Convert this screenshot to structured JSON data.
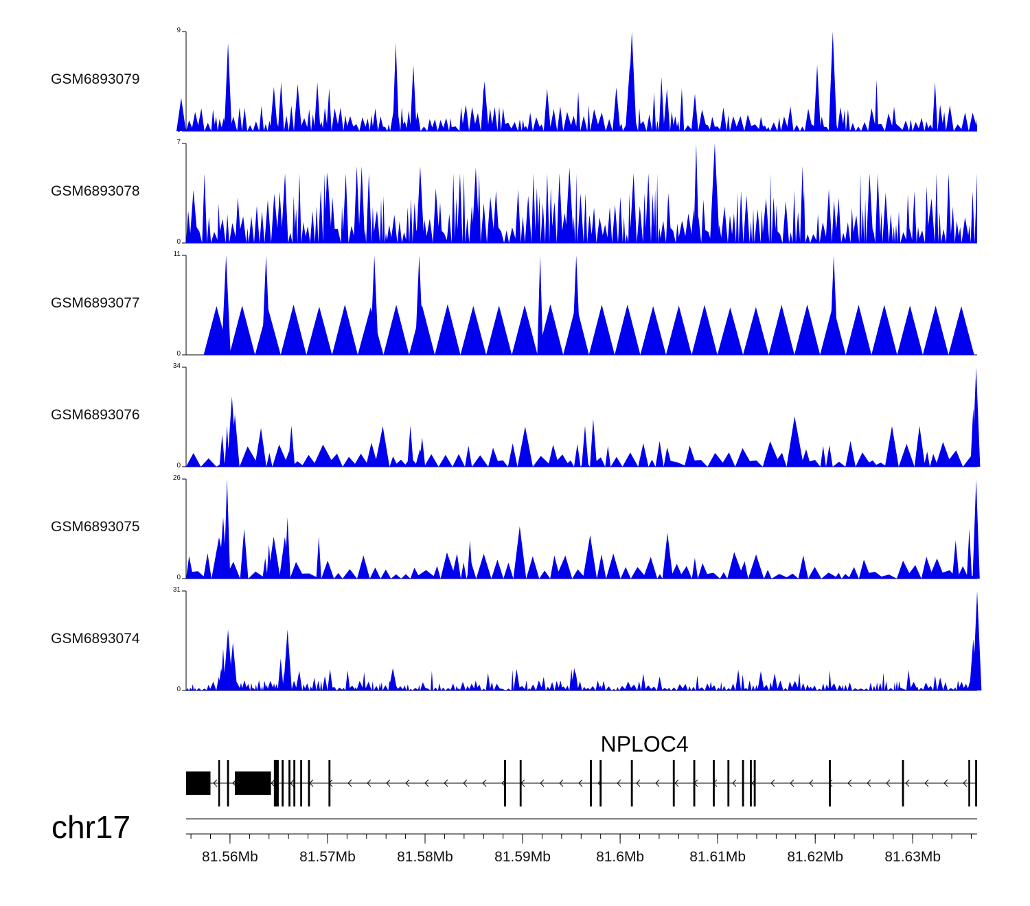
{
  "chart_data": {
    "type": "area",
    "title": "",
    "chromosome": "chr17",
    "xlim_mb": [
      81.5555,
      81.6366
    ],
    "fill_color": "#0000ee",
    "tracks": [
      {
        "name": "GSM6893079",
        "ymin": 0,
        "ymax": 9,
        "label_min": "0",
        "label_max": "9",
        "style": "spiky",
        "density": 170,
        "peaks": [
          [
            81.5598,
            8
          ],
          [
            81.577,
            8
          ],
          [
            81.5788,
            6
          ],
          [
            81.601,
            6
          ],
          [
            81.6012,
            9
          ],
          [
            81.6218,
            9
          ],
          [
            81.6202,
            6
          ],
          [
            81.586,
            4
          ],
          [
            81.555,
            3
          ],
          [
            81.5645,
            4
          ]
        ],
        "background": 1.2
      },
      {
        "name": "GSM6893078",
        "ymin": 0,
        "ymax": 7,
        "label_min": "0",
        "label_max": "7",
        "style": "spiky",
        "density": 200,
        "peaks": [
          [
            81.5795,
            5.4
          ],
          [
            81.573,
            5.4
          ],
          [
            81.5735,
            5.4
          ],
          [
            81.6078,
            7
          ],
          [
            81.6097,
            7
          ],
          [
            81.6187,
            5.4
          ],
          [
            81.5948,
            5.3
          ],
          [
            81.5852,
            5.3
          ],
          [
            81.57,
            5.0
          ]
        ],
        "background": 2.0
      },
      {
        "name": "GSM6893077",
        "ymin": 0,
        "ymax": 11,
        "label_min": "0",
        "label_max": "11",
        "style": "triangles",
        "xstart": 81.5573,
        "xend": 81.6363,
        "peaks": [
          [
            81.5596,
            11
          ],
          [
            81.5637,
            11
          ],
          [
            81.5748,
            11
          ],
          [
            81.5794,
            11
          ],
          [
            81.5918,
            11
          ],
          [
            81.5955,
            11
          ],
          [
            81.6219,
            11
          ]
        ],
        "base_height": 5.5
      },
      {
        "name": "GSM6893076",
        "ymin": 0,
        "ymax": 34,
        "label_min": "0",
        "label_max": "34",
        "style": "mixed",
        "density": 80,
        "peaks": [
          [
            81.5602,
            24
          ],
          [
            81.5597,
            14
          ],
          [
            81.5592,
            11
          ],
          [
            81.5663,
            14
          ],
          [
            81.5785,
            14
          ],
          [
            81.5797,
            10
          ],
          [
            81.5964,
            14
          ],
          [
            81.6365,
            34
          ],
          [
            81.6362,
            20
          ]
        ],
        "background": 4.5
      },
      {
        "name": "GSM6893075",
        "ymin": 0,
        "ymax": 26,
        "label_min": "0",
        "label_max": "26",
        "style": "mixed",
        "density": 85,
        "peaks": [
          [
            81.5597,
            26
          ],
          [
            81.5593,
            16
          ],
          [
            81.5589,
            10
          ],
          [
            81.5659,
            16
          ],
          [
            81.564,
            9
          ],
          [
            81.6365,
            26
          ],
          [
            81.6358,
            13
          ],
          [
            81.6344,
            10
          ],
          [
            81.5846,
            10
          ]
        ],
        "background": 3.5
      },
      {
        "name": "GSM6893074",
        "ymin": 0,
        "ymax": 31,
        "label_min": "0",
        "label_max": "31",
        "style": "dense",
        "density": 220,
        "peaks": [
          [
            81.5598,
            19
          ],
          [
            81.5593,
            13
          ],
          [
            81.5603,
            15
          ],
          [
            81.5659,
            19
          ],
          [
            81.5652,
            10
          ],
          [
            81.5591,
            7
          ],
          [
            81.6366,
            31
          ],
          [
            81.6362,
            16
          ],
          [
            81.5767,
            7
          ],
          [
            81.5953,
            7
          ]
        ],
        "background": 1.6
      }
    ],
    "gene": {
      "name": "NPLOC4",
      "strand": "-",
      "start": 81.5555,
      "end": 81.6366,
      "exons": [
        [
          81.5555,
          81.558
        ],
        [
          81.5605,
          81.5642
        ],
        [
          81.5588,
          81.5589
        ],
        [
          81.5597,
          81.5599
        ],
        [
          81.5645,
          81.565
        ],
        [
          81.5653,
          81.5655
        ],
        [
          81.566,
          81.5662
        ],
        [
          81.5665,
          81.5667
        ],
        [
          81.5672,
          81.5674
        ],
        [
          81.568,
          81.5682
        ],
        [
          81.5701,
          81.5703
        ],
        [
          81.5881,
          81.5883
        ],
        [
          81.5897,
          81.5899
        ],
        [
          81.5969,
          81.5971
        ],
        [
          81.5979,
          81.5981
        ],
        [
          81.6011,
          81.6013
        ],
        [
          81.6054,
          81.6056
        ],
        [
          81.6075,
          81.6077
        ],
        [
          81.6095,
          81.6097
        ],
        [
          81.611,
          81.6112
        ],
        [
          81.6125,
          81.6127
        ],
        [
          81.6133,
          81.6135
        ],
        [
          81.6137,
          81.6139
        ],
        [
          81.6214,
          81.6216
        ],
        [
          81.6289,
          81.6291
        ],
        [
          81.6357,
          81.6358
        ],
        [
          81.6364,
          81.6366
        ]
      ]
    },
    "axis": {
      "ticks_mb": [
        81.56,
        81.57,
        81.58,
        81.59,
        81.6,
        81.61,
        81.62,
        81.63
      ],
      "tick_labels": [
        "81.56Mb",
        "81.57Mb",
        "81.58Mb",
        "81.59Mb",
        "81.6Mb",
        "81.61Mb",
        "81.62Mb",
        "81.63Mb"
      ],
      "minor_step_mb": 0.002
    }
  }
}
